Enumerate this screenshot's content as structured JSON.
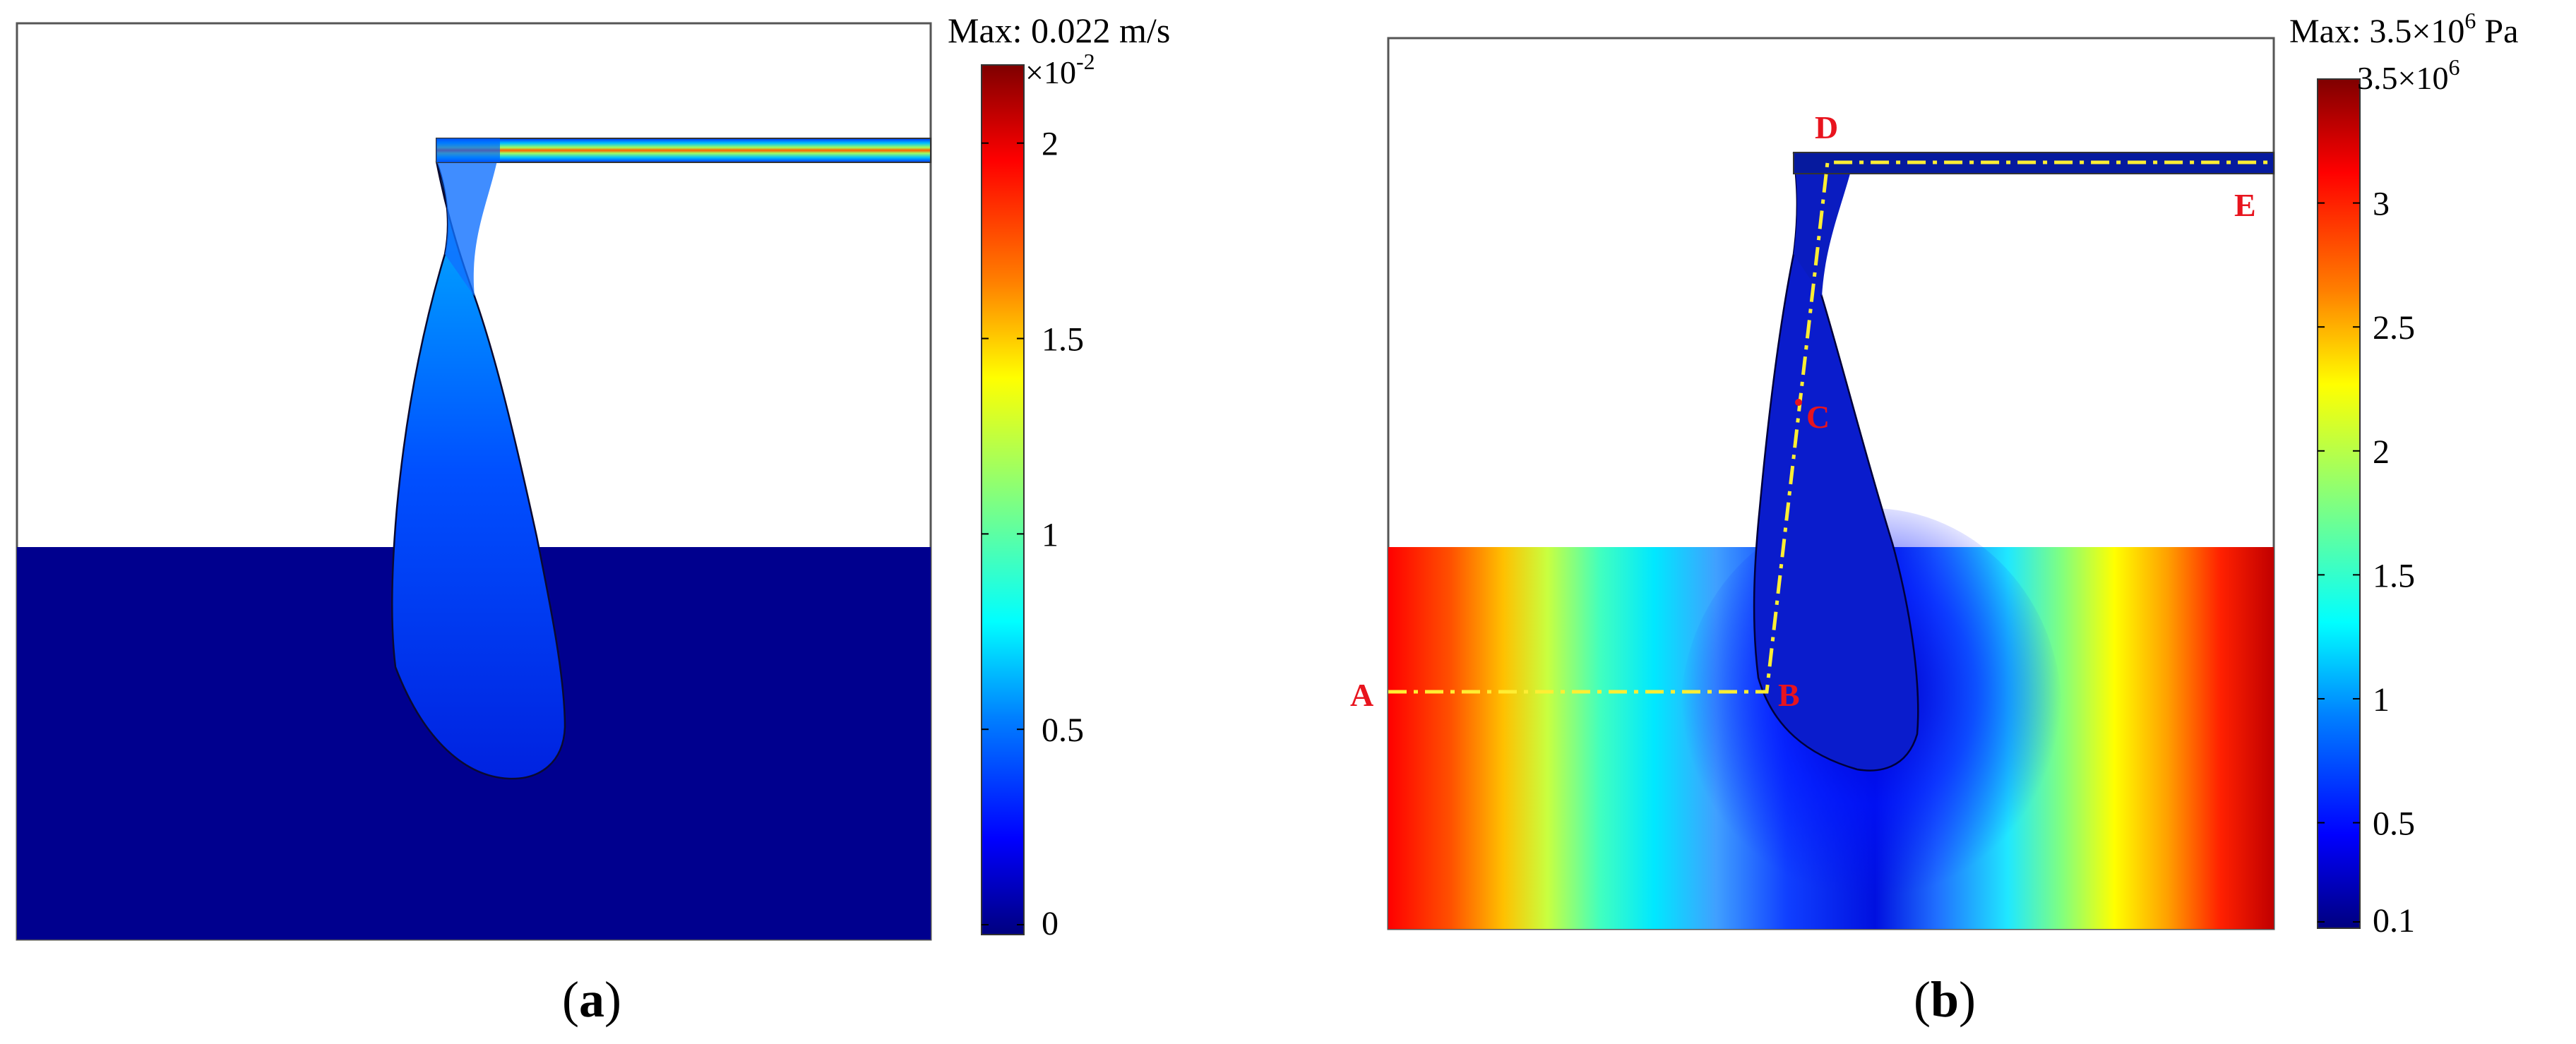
{
  "panels": [
    {
      "id": "a",
      "label_open": "(",
      "label_letter": "a",
      "label_close": ")",
      "max_text": "Max: 0.022 m/s",
      "scale_mantissa": "×10",
      "scale_exponent": "-2",
      "colorbar_ticks": [
        "2",
        "1.5",
        "1",
        "0.5",
        "0"
      ],
      "colorbar_range": [
        0,
        2.2
      ]
    },
    {
      "id": "b",
      "label_open": "(",
      "label_letter": "b",
      "label_close": ")",
      "max_prefix": "Max: 3.5×10",
      "max_exponent": "6",
      "max_suffix": " Pa",
      "top_prefix": "3.5×10",
      "top_exponent": "6",
      "colorbar_ticks": [
        "3",
        "2.5",
        "2",
        "1.5",
        "1",
        "0.5",
        "0.1"
      ],
      "colorbar_range": [
        0.1,
        3.5
      ],
      "points": [
        "A",
        "B",
        "C",
        "D",
        "E"
      ]
    }
  ],
  "colors": {
    "jet": [
      "#00007f",
      "#0000ff",
      "#0080ff",
      "#00ffff",
      "#80ff80",
      "#ffff00",
      "#ff8000",
      "#ff0000",
      "#7f0000"
    ],
    "path_line": "#ffee33",
    "point_label": "#e8141e"
  }
}
